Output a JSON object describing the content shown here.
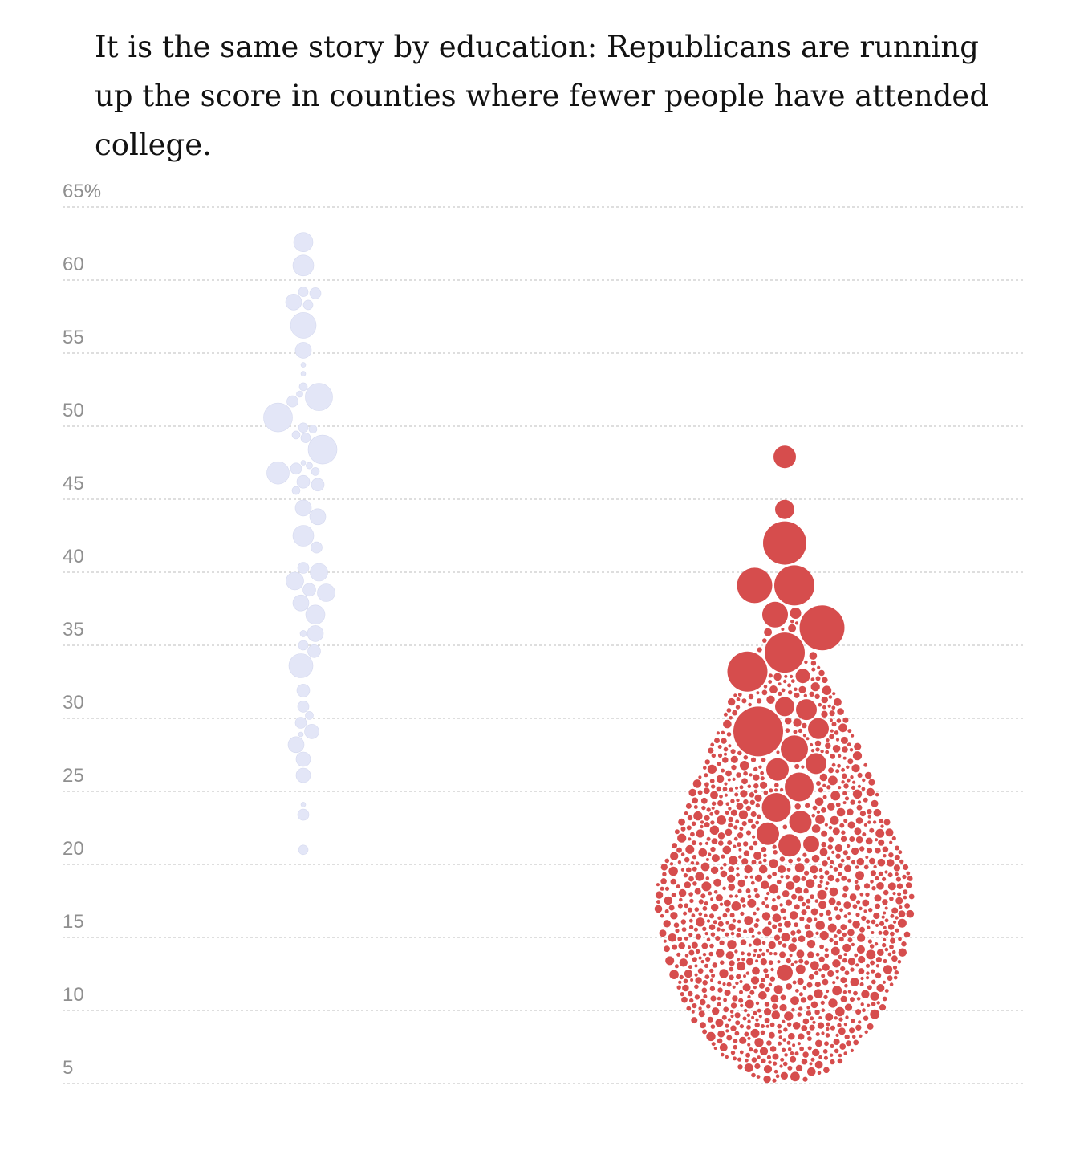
{
  "headline": "It is the same story by education: Republicans are running up the score in counties where fewer people have attended college.",
  "colors": {
    "democrat": "#e3e6f7",
    "republican": "#d64d4d",
    "grid": "#c9c9c9",
    "tick_text": "#8f8f8f"
  },
  "chart_data": {
    "type": "scatter",
    "title": "",
    "xlabel": "",
    "ylabel": "",
    "ylim": [
      4,
      67
    ],
    "grid": true,
    "y_ticks": [
      {
        "value": 65,
        "label": "65%"
      },
      {
        "value": 60,
        "label": "60"
      },
      {
        "value": 55,
        "label": "55"
      },
      {
        "value": 50,
        "label": "50"
      },
      {
        "value": 45,
        "label": "45"
      },
      {
        "value": 40,
        "label": "40"
      },
      {
        "value": 35,
        "label": "35"
      },
      {
        "value": 30,
        "label": "30"
      },
      {
        "value": 25,
        "label": "25"
      },
      {
        "value": 20,
        "label": "20"
      },
      {
        "value": 15,
        "label": "15"
      },
      {
        "value": 10,
        "label": "10"
      },
      {
        "value": 5,
        "label": "5"
      }
    ],
    "series": [
      {
        "color": "#e3e6f7",
        "points": [
          {
            "y": 62.6,
            "size": 12
          },
          {
            "y": 61.0,
            "size": 13
          },
          {
            "y": 59.2,
            "size": 6
          },
          {
            "y": 59.1,
            "size": 7
          },
          {
            "y": 58.5,
            "size": 10
          },
          {
            "y": 58.3,
            "size": 6
          },
          {
            "y": 56.9,
            "size": 16
          },
          {
            "y": 55.2,
            "size": 10
          },
          {
            "y": 54.2,
            "size": 3
          },
          {
            "y": 53.6,
            "size": 3
          },
          {
            "y": 52.7,
            "size": 5
          },
          {
            "y": 52.0,
            "size": 17
          },
          {
            "y": 52.2,
            "size": 4
          },
          {
            "y": 51.7,
            "size": 7
          },
          {
            "y": 50.6,
            "size": 18
          },
          {
            "y": 49.9,
            "size": 6
          },
          {
            "y": 49.8,
            "size": 5
          },
          {
            "y": 49.4,
            "size": 5
          },
          {
            "y": 49.2,
            "size": 6
          },
          {
            "y": 48.4,
            "size": 18
          },
          {
            "y": 47.5,
            "size": 3
          },
          {
            "y": 47.3,
            "size": 4
          },
          {
            "y": 47.1,
            "size": 7
          },
          {
            "y": 46.9,
            "size": 5
          },
          {
            "y": 46.8,
            "size": 14
          },
          {
            "y": 46.2,
            "size": 8
          },
          {
            "y": 46.0,
            "size": 8
          },
          {
            "y": 45.6,
            "size": 5
          },
          {
            "y": 44.4,
            "size": 10
          },
          {
            "y": 43.8,
            "size": 10
          },
          {
            "y": 42.5,
            "size": 13
          },
          {
            "y": 41.7,
            "size": 7
          },
          {
            "y": 40.3,
            "size": 7
          },
          {
            "y": 40.0,
            "size": 11
          },
          {
            "y": 39.4,
            "size": 11
          },
          {
            "y": 38.8,
            "size": 8
          },
          {
            "y": 38.6,
            "size": 11
          },
          {
            "y": 37.9,
            "size": 10
          },
          {
            "y": 37.1,
            "size": 12
          },
          {
            "y": 35.8,
            "size": 4
          },
          {
            "y": 35.8,
            "size": 10
          },
          {
            "y": 35.0,
            "size": 6
          },
          {
            "y": 34.6,
            "size": 8
          },
          {
            "y": 33.6,
            "size": 15
          },
          {
            "y": 31.9,
            "size": 8
          },
          {
            "y": 30.8,
            "size": 7
          },
          {
            "y": 30.2,
            "size": 5
          },
          {
            "y": 29.7,
            "size": 7
          },
          {
            "y": 29.1,
            "size": 9
          },
          {
            "y": 28.9,
            "size": 3
          },
          {
            "y": 28.2,
            "size": 10
          },
          {
            "y": 27.2,
            "size": 9
          },
          {
            "y": 26.1,
            "size": 9
          },
          {
            "y": 24.1,
            "size": 3
          },
          {
            "y": 23.4,
            "size": 7
          },
          {
            "y": 21.0,
            "size": 6
          }
        ]
      },
      {
        "color": "#d64d4d",
        "points": [
          {
            "y": 47.9,
            "size": 14
          },
          {
            "y": 44.3,
            "size": 12
          },
          {
            "y": 42.0,
            "size": 27
          },
          {
            "y": 39.1,
            "size": 25
          },
          {
            "y": 39.1,
            "size": 22
          },
          {
            "y": 37.1,
            "size": 16
          },
          {
            "y": 37.2,
            "size": 7
          },
          {
            "y": 36.2,
            "size": 28
          },
          {
            "y": 34.5,
            "size": 25
          },
          {
            "y": 33.2,
            "size": 25
          },
          {
            "y": 32.9,
            "size": 9
          },
          {
            "y": 30.8,
            "size": 12
          },
          {
            "y": 30.6,
            "size": 13
          },
          {
            "y": 29.1,
            "size": 31
          },
          {
            "y": 29.3,
            "size": 13
          },
          {
            "y": 27.9,
            "size": 17
          },
          {
            "y": 26.9,
            "size": 13
          },
          {
            "y": 26.5,
            "size": 14
          },
          {
            "y": 25.3,
            "size": 18
          },
          {
            "y": 23.9,
            "size": 18
          },
          {
            "y": 22.9,
            "size": 14
          },
          {
            "y": 22.1,
            "size": 14
          },
          {
            "y": 21.3,
            "size": 14
          },
          {
            "y": 21.4,
            "size": 10
          },
          {
            "y": 12.6,
            "size": 10
          }
        ],
        "blob": {
          "tip_top": 37.5,
          "bottom": 5.2,
          "widest": 18.5,
          "dots": 1500,
          "dot_size": [
            2,
            6
          ]
        }
      }
    ]
  }
}
